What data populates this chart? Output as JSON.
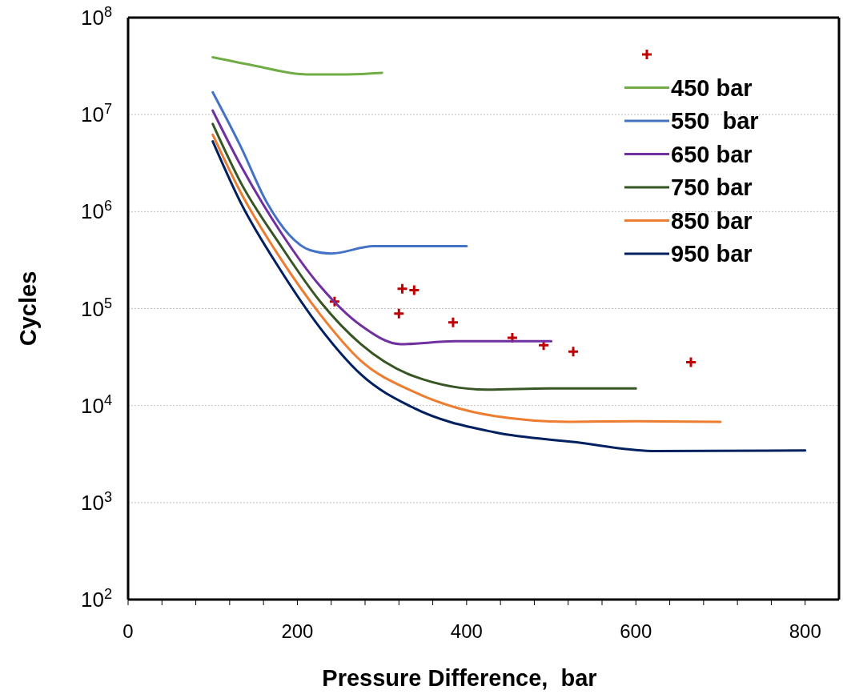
{
  "chart_data": {
    "type": "line",
    "xlabel": "Pressure Difference,  bar",
    "ylabel": "Cycles",
    "log": "y",
    "grid": "y",
    "legend": "top right",
    "line_style": "solid",
    "xlim": [
      0,
      840
    ],
    "xticks": [
      0,
      {
        "value": 40,
        "label": null
      },
      {
        "value": 80,
        "label": null
      },
      {
        "value": 120,
        "label": null
      },
      {
        "value": 160,
        "label": null
      },
      200,
      {
        "value": 240,
        "label": null
      },
      {
        "value": 280,
        "label": null
      },
      {
        "value": 320,
        "label": null
      },
      {
        "value": 360,
        "label": null
      },
      400,
      {
        "value": 440,
        "label": null
      },
      {
        "value": 480,
        "label": null
      },
      {
        "value": 520,
        "label": null
      },
      {
        "value": 560,
        "label": null
      },
      600,
      {
        "value": 640,
        "label": null
      },
      {
        "value": 680,
        "label": null
      },
      {
        "value": 720,
        "label": null
      },
      {
        "value": 760,
        "label": null
      },
      800
    ],
    "ylim": [
      100,
      100000000
    ],
    "yticks": [
      {
        "value": 100,
        "label": "10$^{2}$"
      },
      {
        "value": 1000,
        "label": "10$^{3}$"
      },
      {
        "value": 10000,
        "label": "10$^{4}$"
      },
      {
        "value": 100000,
        "label": "10$^{5}$"
      },
      {
        "value": 1000000,
        "label": "10$^{6}$"
      },
      {
        "value": 10000000,
        "label": "10$^{7}$"
      },
      {
        "value": 100000000,
        "label": "10$^{8}$"
      }
    ],
    "series": [
      {
        "type": "scatter",
        "marker": "cross",
        "color": "#c00000",
        "x": [
          244,
          324,
          338,
          320,
          384,
          454,
          491,
          526,
          665
        ],
        "values": [
          118000,
          160000,
          155000,
          89000,
          72000,
          50000,
          42000,
          36000,
          28000
        ]
      },
      {
        "name": "450 bar",
        "color": "#70ad47",
        "x": [
          100,
          149,
          211,
          259,
          300
        ],
        "values": [
          39000000,
          32000000,
          26000000,
          26000000,
          27000000
        ]
      },
      {
        "name": "550  bar",
        "color": "#4472c4",
        "x": [
          100,
          133,
          164,
          190,
          215,
          240,
          290,
          400
        ],
        "values": [
          17000000,
          4700000,
          1240000,
          580000,
          400000,
          370000,
          440000,
          440000
        ]
      },
      {
        "name": "650 bar",
        "color": "#7030a0",
        "x": [
          100,
          133,
          180,
          227,
          275,
          322,
          386,
          500
        ],
        "values": [
          11000000,
          3000000,
          620000,
          170000,
          67000,
          43000,
          46000,
          46000
        ]
      },
      {
        "name": "750 bar",
        "color": "#375623",
        "x": [
          100,
          133,
          180,
          227,
          275,
          338,
          424,
          496,
          600
        ],
        "values": [
          8000000,
          2000000,
          450000,
          118000,
          43000,
          20000,
          14600,
          15000,
          15000
        ]
      },
      {
        "name": "850 bar",
        "color": "#ed7d31",
        "x": [
          100,
          133,
          180,
          227,
          275,
          338,
          433,
          521,
          600,
          700
        ],
        "values": [
          6200000,
          1580000,
          330000,
          87000,
          29000,
          13800,
          7800,
          6800,
          6900,
          6800
        ]
      },
      {
        "name": "950 bar",
        "color": "#002060",
        "x": [
          100,
          133,
          180,
          227,
          275,
          338,
          433,
          528,
          623,
          800
        ],
        "values": [
          5300000,
          1240000,
          250000,
          63000,
          21000,
          9400,
          5300,
          4200,
          3400,
          3450
        ]
      }
    ]
  }
}
